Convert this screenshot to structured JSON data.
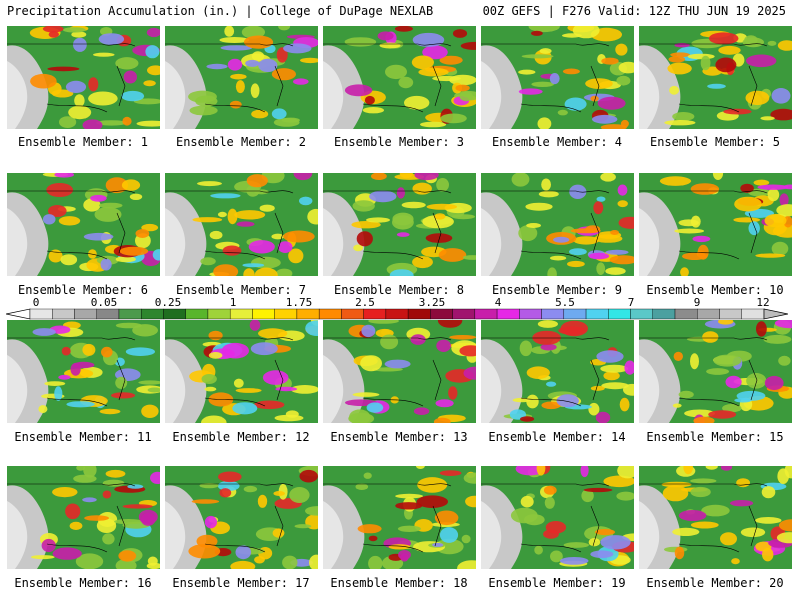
{
  "header": {
    "left": "Precipitation Accumulation (in.) | College of DuPage NEXLAB",
    "right": "00Z GEFS | F276 Valid: 12Z THU JUN 19 2025"
  },
  "members": [
    "Ensemble Member: 1",
    "Ensemble Member: 2",
    "Ensemble Member: 3",
    "Ensemble Member: 4",
    "Ensemble Member: 5",
    "Ensemble Member: 6",
    "Ensemble Member: 7",
    "Ensemble Member: 8",
    "Ensemble Member: 9",
    "Ensemble Member: 10",
    "Ensemble Member: 11",
    "Ensemble Member: 12",
    "Ensemble Member: 13",
    "Ensemble Member: 14",
    "Ensemble Member: 15",
    "Ensemble Member: 16",
    "Ensemble Member: 17",
    "Ensemble Member: 18",
    "Ensemble Member: 19",
    "Ensemble Member: 20"
  ],
  "colorbar": {
    "labels": [
      "0",
      "0.05",
      "0.25",
      "1",
      "1.75",
      "2.5",
      "3.25",
      "4",
      "5.5",
      "7",
      "9",
      "12"
    ],
    "colors": [
      "#e6e6e6",
      "#c8c8c8",
      "#a8a8a8",
      "#888888",
      "#4c9a4c",
      "#2e862e",
      "#1f6e1f",
      "#59b52c",
      "#9fd33a",
      "#e6ef3a",
      "#fff200",
      "#ffd200",
      "#ffae00",
      "#ff8a00",
      "#f05a14",
      "#e62020",
      "#c81414",
      "#a00a0a",
      "#8c0a3c",
      "#a0146e",
      "#c81eaa",
      "#e628e6",
      "#b45ae6",
      "#8c8cf0",
      "#6eaaf0",
      "#50d2f0",
      "#32e6e6",
      "#5ac8c8",
      "#4ba0a0",
      "#8c8c8c",
      "#a8a8a8",
      "#c8c8c8",
      "#e0e0e0"
    ]
  },
  "map_palette": [
    "#b4b4b4",
    "#d2d2d2",
    "#3c9a3c",
    "#2a7d2a",
    "#8cc83c",
    "#f0f032",
    "#ffc800",
    "#ff8c00",
    "#e62828",
    "#b40a0a",
    "#c81eaa",
    "#e628e6",
    "#8c8cf0",
    "#50d2f0"
  ]
}
